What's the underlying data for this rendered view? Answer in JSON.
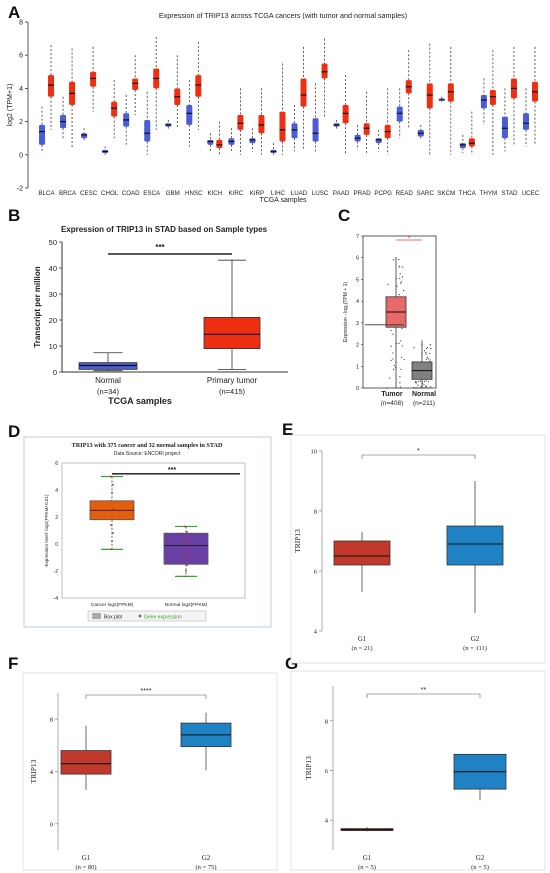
{
  "panels": {
    "A": "A",
    "B": "B",
    "C": "C",
    "D": "D",
    "E": "E",
    "F": "F",
    "G": "G"
  },
  "colors": {
    "tumor": "#ee2f12",
    "normal": "#4a5cd8",
    "normal_c": "#808080",
    "tumor_c": "#e66a6a",
    "d_cancer": "#e35f0d",
    "d_normal": "#6a3fa4",
    "g1": "#c0392b",
    "g2": "#1f82c4",
    "sig_b": "#222222",
    "sig_c": "#e23b3b"
  },
  "chart_data": [
    {
      "id": "A",
      "type": "box",
      "title": "Expression of TRIP13 across TCGA cancers (with tumor and normal samples)",
      "xlabel": "TCGA samples",
      "ylabel": "log2 (TPM+1)",
      "ylim": [
        -2,
        8
      ],
      "yticks": [
        -2,
        0,
        2,
        4,
        6,
        8
      ],
      "categories": [
        "BLCA",
        "BRCA",
        "CESC",
        "CHOL",
        "COAD",
        "ESCA",
        "GBM",
        "HNSC",
        "KICH",
        "KIRC",
        "KIRP",
        "LIHC",
        "LUAD",
        "LUSC",
        "PAAD",
        "PRAD",
        "PCPG",
        "READ",
        "SARC",
        "SKCM",
        "THCA",
        "THYM",
        "STAD",
        "UCEC"
      ],
      "series": [
        {
          "key": "normal",
          "boxes": [
            [
              0.6,
              1.8
            ],
            [
              1.6,
              2.4
            ],
            [
              1.0,
              1.3
            ],
            [
              0.1,
              0.3
            ],
            [
              1.7,
              2.5
            ],
            [
              0.8,
              2.1
            ],
            [
              1.7,
              1.9
            ],
            [
              1.8,
              3.0
            ],
            [
              0.6,
              0.9
            ],
            [
              0.6,
              1.0
            ],
            [
              0.7,
              1.0
            ],
            [
              0.1,
              0.3
            ],
            [
              1.0,
              1.9
            ],
            [
              0.8,
              2.2
            ],
            [
              1.7,
              1.9
            ],
            [
              0.8,
              1.2
            ],
            [
              0.7,
              1.0
            ],
            [
              2.0,
              2.9
            ],
            [
              1.1,
              1.5
            ],
            [
              3.3,
              3.4
            ],
            [
              0.4,
              0.7
            ],
            [
              2.8,
              3.6
            ],
            [
              1.0,
              2.3
            ],
            [
              1.5,
              2.5
            ]
          ],
          "medians": [
            1.4,
            2.0,
            1.2,
            0.2,
            2.1,
            1.3,
            1.8,
            2.5,
            0.8,
            0.8,
            0.9,
            0.2,
            1.5,
            1.3,
            1.8,
            1.0,
            0.9,
            2.5,
            1.3,
            3.3,
            0.6,
            3.3,
            1.6,
            1.9
          ],
          "whisk": [
            [
              0.1,
              2.9
            ],
            [
              1.0,
              3.5
            ],
            [
              0.8,
              1.6
            ],
            [
              0.0,
              0.5
            ],
            [
              0.6,
              3.6
            ],
            [
              0.0,
              3.8
            ],
            [
              1.5,
              2.1
            ],
            [
              0.5,
              4.5
            ],
            [
              0.2,
              1.3
            ],
            [
              0.2,
              1.6
            ],
            [
              0.2,
              1.6
            ],
            [
              0.0,
              0.7
            ],
            [
              0.2,
              3.0
            ],
            [
              0.1,
              4.3
            ],
            [
              1.5,
              2.1
            ],
            [
              0.3,
              1.8
            ],
            [
              0.2,
              1.5
            ],
            [
              1.0,
              4.0
            ],
            [
              0.9,
              1.8
            ],
            [
              3.2,
              3.5
            ],
            [
              0.1,
              1.2
            ],
            [
              1.8,
              4.6
            ],
            [
              0.2,
              4.0
            ],
            [
              0.5,
              4.0
            ]
          ]
        },
        {
          "key": "tumor",
          "boxes": [
            [
              3.5,
              4.8
            ],
            [
              3.0,
              4.4
            ],
            [
              4.1,
              5.0
            ],
            [
              2.3,
              3.2
            ],
            [
              3.9,
              4.6
            ],
            [
              4.0,
              5.2
            ],
            [
              3.0,
              4.0
            ],
            [
              3.5,
              4.8
            ],
            [
              0.4,
              0.9
            ],
            [
              1.5,
              2.4
            ],
            [
              1.3,
              2.4
            ],
            [
              0.8,
              2.6
            ],
            [
              2.9,
              4.6
            ],
            [
              4.6,
              5.5
            ],
            [
              1.9,
              3.0
            ],
            [
              1.2,
              1.9
            ],
            [
              1.0,
              1.8
            ],
            [
              3.7,
              4.5
            ],
            [
              2.8,
              4.3
            ],
            [
              3.2,
              4.3
            ],
            [
              0.5,
              1.0
            ],
            [
              3.0,
              3.9
            ],
            [
              3.4,
              4.6
            ],
            [
              3.2,
              4.4
            ]
          ],
          "medians": [
            4.2,
            3.7,
            4.6,
            2.8,
            4.3,
            4.6,
            3.5,
            4.2,
            0.6,
            1.9,
            1.8,
            1.5,
            3.6,
            5.0,
            2.5,
            1.6,
            1.4,
            4.1,
            3.6,
            3.8,
            0.7,
            3.5,
            4.0,
            3.8
          ],
          "whisk": [
            [
              1.5,
              6.6
            ],
            [
              0.4,
              6.4
            ],
            [
              2.6,
              6.5
            ],
            [
              1.0,
              4.5
            ],
            [
              2.4,
              6.0
            ],
            [
              1.5,
              7.1
            ],
            [
              1.6,
              6.0
            ],
            [
              1.5,
              6.8
            ],
            [
              0.0,
              2.0
            ],
            [
              0.0,
              4.0
            ],
            [
              0.0,
              4.0
            ],
            [
              0.0,
              5.5
            ],
            [
              0.3,
              6.5
            ],
            [
              2.2,
              7.0
            ],
            [
              0.0,
              4.8
            ],
            [
              0.0,
              3.8
            ],
            [
              0.0,
              4.0
            ],
            [
              1.6,
              6.3
            ],
            [
              0.0,
              6.7
            ],
            [
              0.0,
              6.5
            ],
            [
              0.0,
              2.6
            ],
            [
              0.0,
              6.3
            ],
            [
              0.5,
              6.5
            ],
            [
              0.6,
              6.5
            ]
          ]
        }
      ]
    },
    {
      "id": "B",
      "type": "box",
      "title": "Expression of TRIP13 in STAD based on Sample types",
      "xlabel": "TCGA samples",
      "ylabel": "Transcript per million",
      "ylim": [
        0,
        50
      ],
      "yticks": [
        0,
        10,
        20,
        30,
        40,
        50
      ],
      "categories": [
        "Normal",
        "Primary tumor"
      ],
      "counts": [
        "(n=34)",
        "(n=415)"
      ],
      "boxes": [
        [
          1.0,
          3.6
        ],
        [
          9.0,
          21.0
        ]
      ],
      "medians": [
        2.5,
        14.5
      ],
      "whisk": [
        [
          0.5,
          7.4
        ],
        [
          1.0,
          43.0
        ]
      ],
      "signif": "***"
    },
    {
      "id": "C",
      "type": "box",
      "ylabel": "Expression - log₂(TPM + 1)",
      "ylim": [
        0,
        7
      ],
      "yticks": [
        0,
        1,
        2,
        3,
        4,
        5,
        6,
        7
      ],
      "categories": [
        "Tumor",
        "Normal"
      ],
      "counts": [
        "(n=408)",
        "(n=211)"
      ],
      "boxes": [
        [
          2.8,
          4.2
        ],
        [
          0.4,
          1.2
        ]
      ],
      "medians": [
        3.5,
        0.8
      ],
      "whisk": [
        [
          0.0,
          6.0
        ],
        [
          0.0,
          2.2
        ]
      ],
      "signif": "*"
    },
    {
      "id": "D",
      "type": "box",
      "title": "TRIP13 with 375 cancer and 32 normal samples in STAD",
      "subtitle": "Data Source: ENCORI project",
      "ylabel": "Expression level: log2(FPKM+0.01)",
      "ylim": [
        -4,
        6
      ],
      "yticks": [
        -4,
        -2,
        0,
        2,
        4,
        6
      ],
      "categories": [
        "Cancer log2(FPKM)",
        "Normal log2(FPKM)"
      ],
      "boxes": [
        [
          1.8,
          3.2
        ],
        [
          -1.5,
          0.8
        ]
      ],
      "medians": [
        2.5,
        -0.1
      ],
      "whisk": [
        [
          -0.4,
          5.0
        ],
        [
          -2.4,
          1.3
        ]
      ],
      "signif": "***",
      "legend": [
        "Box plot",
        "Gene expression"
      ]
    },
    {
      "id": "E",
      "type": "box",
      "ylabel": "TRIP13",
      "ylim": [
        4,
        10
      ],
      "yticks": [
        4,
        6,
        8,
        10
      ],
      "categories": [
        "G1",
        "G2"
      ],
      "counts": [
        "(n = 21)",
        "(n = 111)"
      ],
      "boxes": [
        [
          6.2,
          7.0
        ],
        [
          6.2,
          7.5
        ]
      ],
      "medians": [
        6.5,
        6.9
      ],
      "whisk": [
        [
          5.3,
          7.3
        ],
        [
          4.6,
          9.0
        ]
      ],
      "signif": "*"
    },
    {
      "id": "F",
      "type": "box",
      "ylabel": "TRIP13",
      "ylim": [
        -2,
        10
      ],
      "yticks": [
        0,
        4,
        8
      ],
      "categories": [
        "G1",
        "G2"
      ],
      "counts": [
        "(n = 80)",
        "(n = 75)"
      ],
      "boxes": [
        [
          3.8,
          5.6
        ],
        [
          5.9,
          7.7
        ]
      ],
      "medians": [
        4.6,
        6.8
      ],
      "whisk": [
        [
          2.6,
          7.5
        ],
        [
          4.1,
          8.5
        ]
      ],
      "signif": "****"
    },
    {
      "id": "G",
      "type": "box",
      "ylabel": "TRIP13",
      "ylim": [
        2.8,
        9.4
      ],
      "yticks": [
        4,
        6,
        8
      ],
      "categories": [
        "G1",
        "G2"
      ],
      "counts": [
        "(n = 5)",
        "(n = 5)"
      ],
      "boxes": [
        [
          3.58,
          3.66
        ],
        [
          5.25,
          6.65
        ]
      ],
      "medians": [
        3.62,
        5.95
      ],
      "whisk": [
        [
          3.55,
          3.72
        ],
        [
          4.8,
          6.65
        ]
      ],
      "signif": "**"
    }
  ]
}
